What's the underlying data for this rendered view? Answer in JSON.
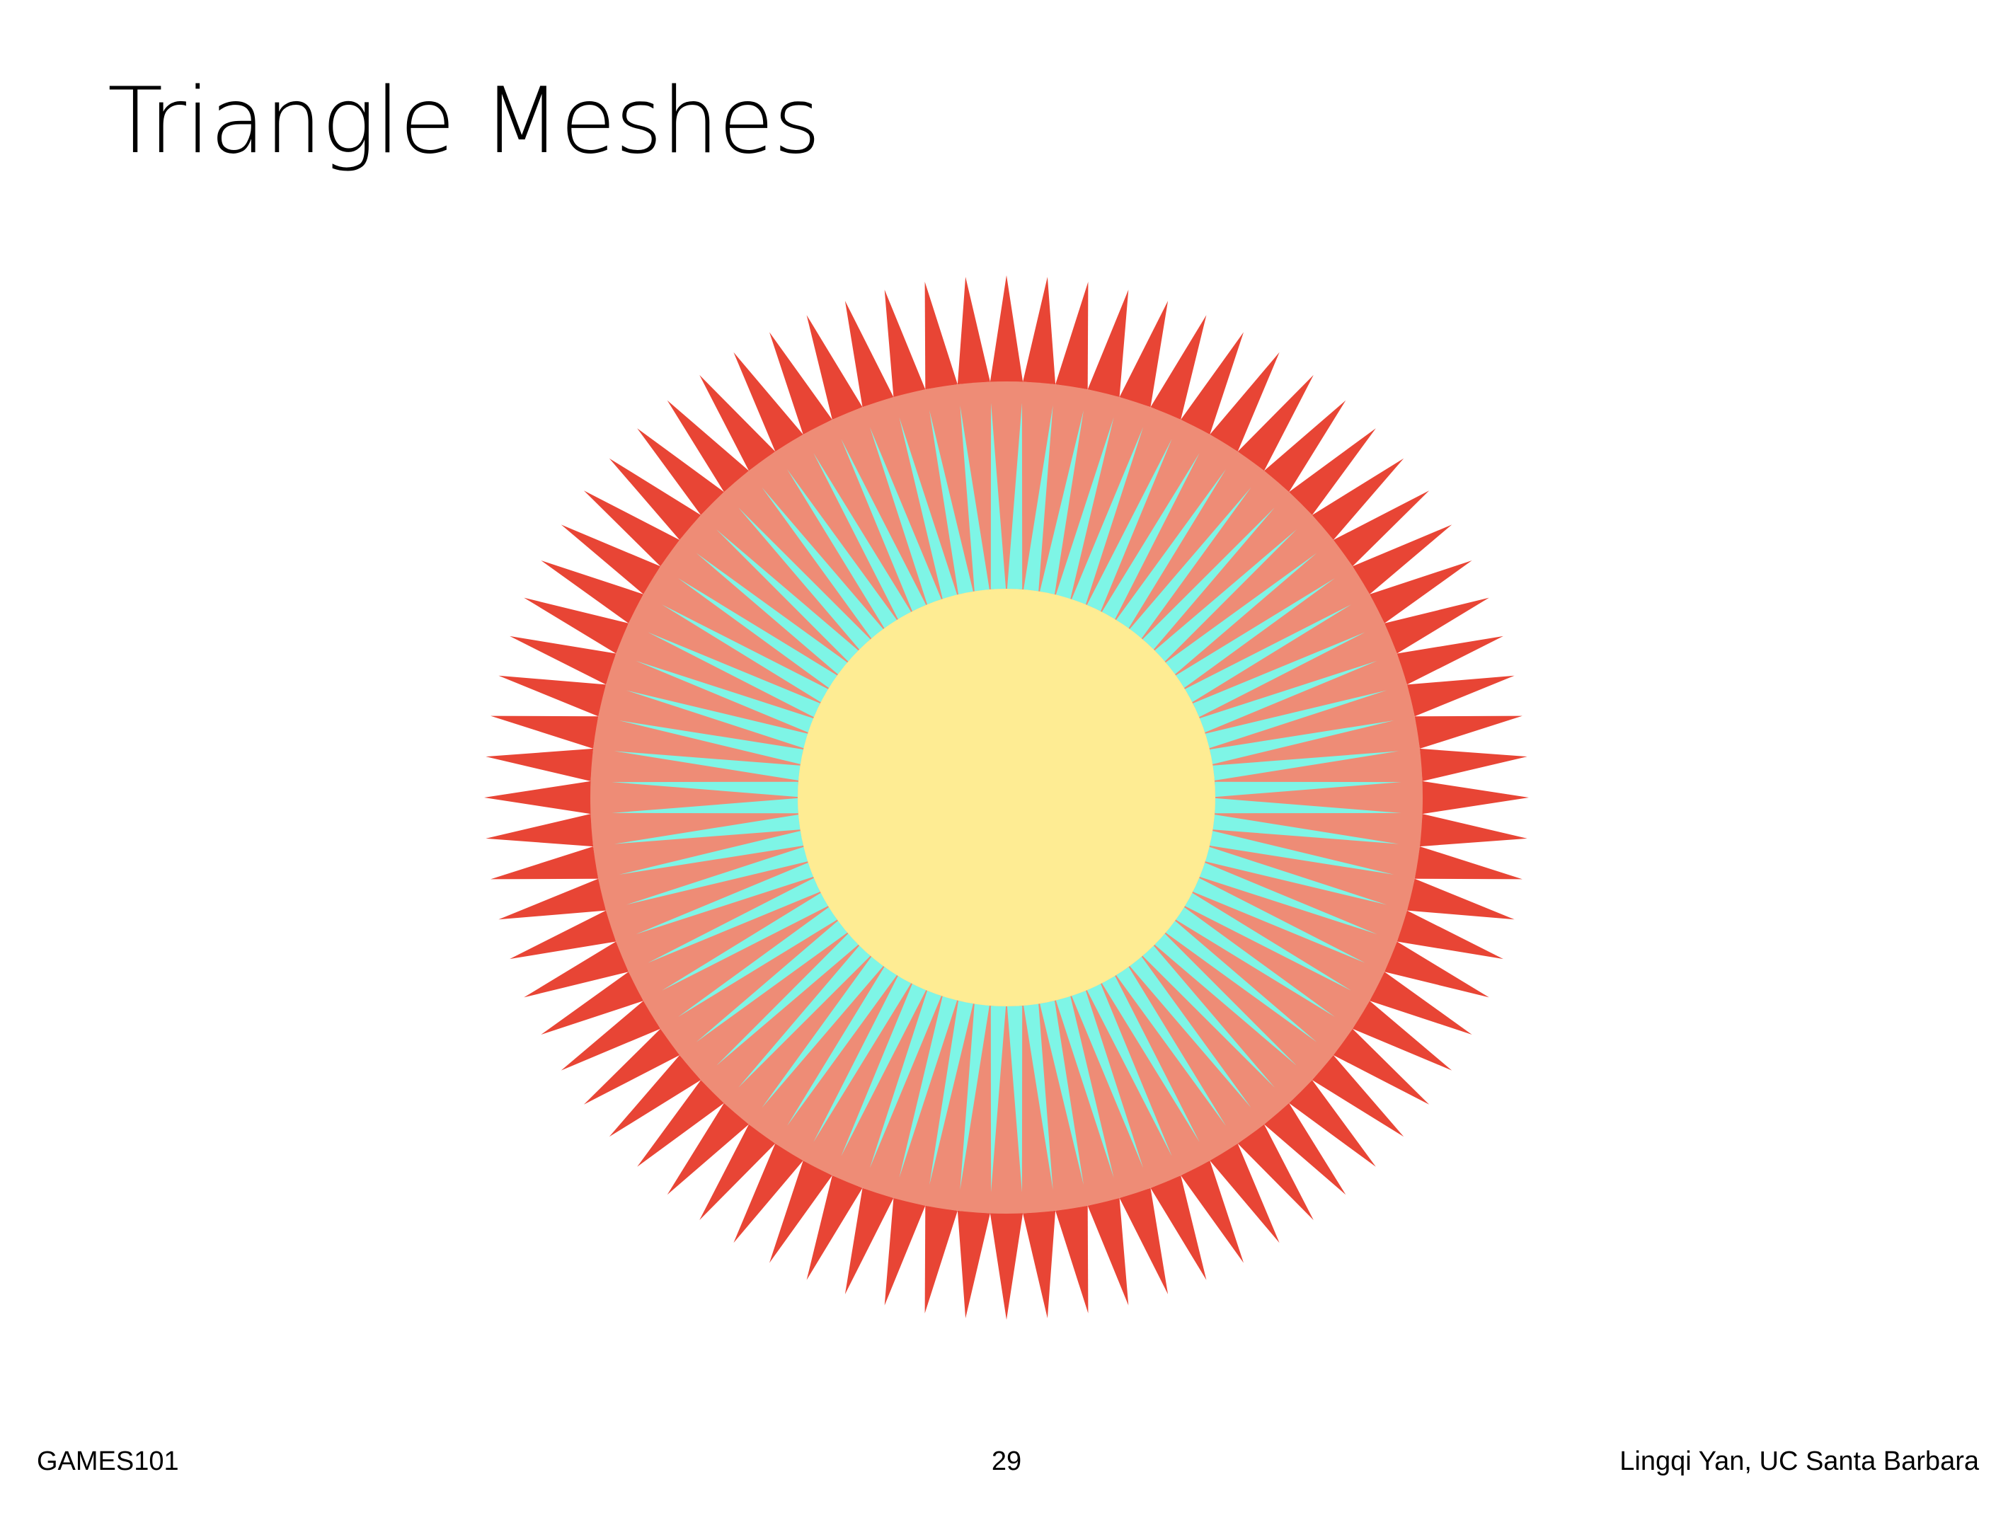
{
  "slide": {
    "title": "Triangle Meshes",
    "footer_left": "GAMES101",
    "page_number": "29",
    "footer_right": "Lingqi Yan, UC Santa Barbara"
  },
  "figure": {
    "spike_count": 80,
    "wedge_count": 80,
    "colors": {
      "spikes": "#e84535",
      "ring": "#ee8c76",
      "wedges": "#7ef5e6",
      "core": "#feec93"
    }
  }
}
